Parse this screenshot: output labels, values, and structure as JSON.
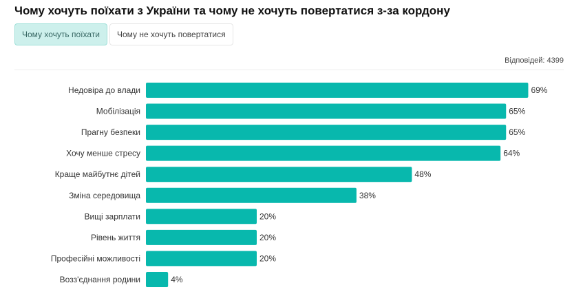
{
  "title": "Чому хочуть поїхати з України та чому не хочуть повертатися з-за кордону",
  "tabs": [
    {
      "label": "Чому хочуть поїхати",
      "active": true
    },
    {
      "label": "Чому не хочуть повертатися",
      "active": false
    }
  ],
  "responses_label": "Відповідей: 4399",
  "colors": {
    "bar": "#08b8ad",
    "active_tab_bg": "#cdf0ec"
  },
  "chart_data": {
    "type": "bar",
    "orientation": "horizontal",
    "categories": [
      "Недовіра до влади",
      "Мобілізація",
      "Прагну безпеки",
      "Хочу менше стресу",
      "Краще майбутнє дітей",
      "Зміна середовища",
      "Вищі зарплати",
      "Рівень життя",
      "Професійні можливості",
      "Возз'єднання родини"
    ],
    "values": [
      69,
      65,
      65,
      64,
      48,
      38,
      20,
      20,
      20,
      4
    ],
    "value_labels": [
      "69%",
      "65%",
      "65%",
      "64%",
      "48%",
      "38%",
      "20%",
      "20%",
      "20%",
      "4%"
    ],
    "xlim": [
      0,
      100
    ],
    "grid": false
  }
}
